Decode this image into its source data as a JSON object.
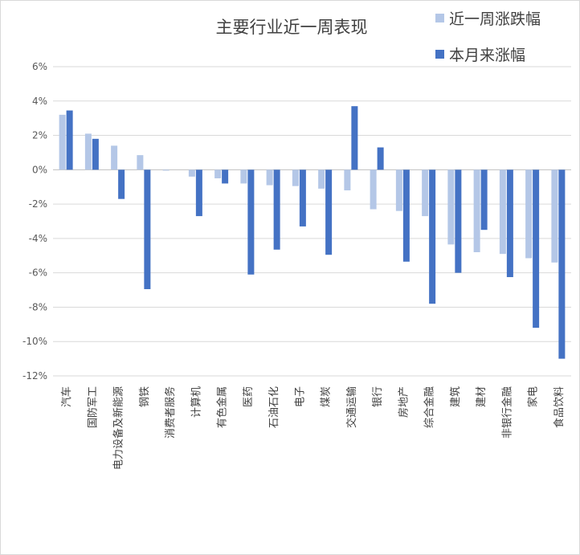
{
  "chart_data": {
    "type": "bar",
    "title": "主要行业近一周表现",
    "categories": [
      "汽车",
      "国防军工",
      "电力设备及新能源",
      "钢铁",
      "消费者服务",
      "计算机",
      "有色金属",
      "医药",
      "石油石化",
      "电子",
      "煤炭",
      "交通运输",
      "银行",
      "房地产",
      "综合金融",
      "建筑",
      "建材",
      "非银行金融",
      "家电",
      "食品饮料"
    ],
    "series": [
      {
        "name": "近一周涨跌幅",
        "color": "#b4c7e7",
        "values": [
          3.2,
          2.1,
          1.4,
          0.85,
          -0.05,
          -0.4,
          -0.5,
          -0.8,
          -0.9,
          -0.95,
          -1.1,
          -1.2,
          -2.3,
          -2.4,
          -2.7,
          -4.35,
          -4.8,
          -4.9,
          -5.15,
          -5.4
        ]
      },
      {
        "name": "本月来涨幅",
        "color": "#4472c4",
        "values": [
          3.45,
          1.8,
          -1.7,
          -6.95,
          0,
          -2.7,
          -0.8,
          -6.1,
          -4.65,
          -3.3,
          -4.95,
          3.7,
          1.3,
          -5.35,
          -7.8,
          -6.0,
          -3.5,
          -6.25,
          -9.2,
          -11.0
        ]
      }
    ],
    "y_ticks": [
      "6%",
      "4%",
      "2%",
      "0%",
      "-2%",
      "-4%",
      "-6%",
      "-8%",
      "-10%",
      "-12%"
    ],
    "ylim": [
      -12,
      6
    ],
    "y_step": 2,
    "grid": true,
    "legend_position": "top-right"
  }
}
